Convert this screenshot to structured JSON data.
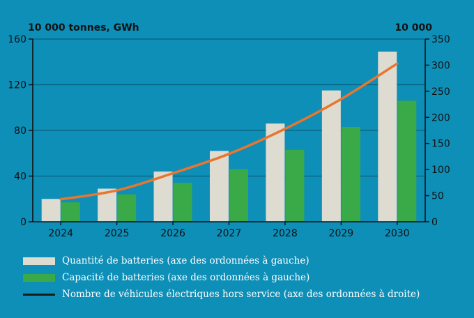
{
  "chart_data": {
    "type": "bar+line",
    "categories": [
      "2024",
      "2025",
      "2026",
      "2027",
      "2028",
      "2029",
      "2030"
    ],
    "left_axis": {
      "unit_label": "10 000 tonnes, GWh",
      "ylim": [
        0,
        160
      ],
      "ticks": [
        "0",
        "40",
        "80",
        "120",
        "160"
      ]
    },
    "right_axis": {
      "unit_label": "10 000",
      "ylim": [
        0,
        350
      ],
      "ticks": [
        "0",
        "50",
        "100",
        "150",
        "200",
        "250",
        "300",
        "350"
      ]
    },
    "series": [
      {
        "name": "Quantité de batteries (axe des ordonnées à gauche)",
        "type": "bar",
        "axis": "left",
        "color": "#dedbd0",
        "values": [
          20,
          29,
          44,
          62,
          86,
          115,
          149
        ]
      },
      {
        "name": "Capacité de batteries (axe des ordonnées à gauche)",
        "type": "bar",
        "axis": "left",
        "color": "#3aaa49",
        "values": [
          17,
          24,
          34,
          46,
          63,
          83,
          106
        ]
      },
      {
        "name": "Nombre de véhicules électriques hors service (axe des ordonnées à droite)",
        "type": "line",
        "axis": "right",
        "color": "#e8762f",
        "values": [
          43,
          60,
          93,
          130,
          178,
          235,
          303
        ]
      }
    ],
    "grid": "horizontal",
    "legend_position": "bottom-left"
  },
  "legend": {
    "items": [
      {
        "label": "Quantité de batteries (axe des ordonnées à gauche)",
        "color": "#dedbd0"
      },
      {
        "label": "Capacité de batteries (axe des ordonnées à gauche)",
        "color": "#3aaa49"
      },
      {
        "label": "Nombre de véhicules électriques hors service (axe des ordonnées à droite)",
        "color": "#1b1b1b"
      }
    ]
  }
}
